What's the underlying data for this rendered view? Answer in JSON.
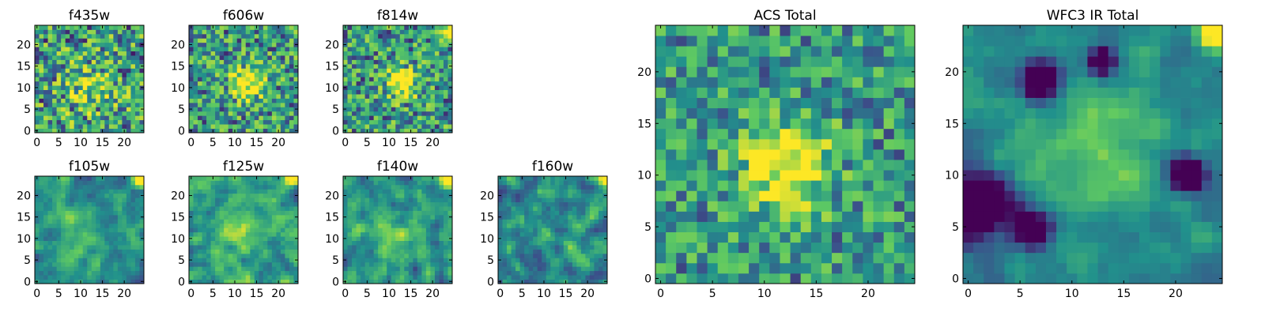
{
  "chart_data": [
    {
      "type": "heatmap",
      "title": "f435w",
      "xlabel": "",
      "ylabel": "",
      "xticks": [
        "0",
        "5",
        "10",
        "15",
        "20"
      ],
      "yticks": [
        "0",
        "5",
        "10",
        "15",
        "20"
      ],
      "xlim": [
        -0.5,
        24.5
      ],
      "ylim": [
        -0.5,
        24.5
      ],
      "grid_size": [
        25,
        25
      ],
      "pattern": {
        "seed": 11,
        "noise": 0.85,
        "blob": 0.25,
        "bx": 12,
        "by": 10,
        "bs": 4,
        "corner": 0.0,
        "dark": [],
        "smooth": 0,
        "gamma": 0.7
      }
    },
    {
      "type": "heatmap",
      "title": "f606w",
      "xlabel": "",
      "ylabel": "",
      "xticks": [
        "0",
        "5",
        "10",
        "15",
        "20"
      ],
      "yticks": [
        "0",
        "5",
        "10",
        "15",
        "20"
      ],
      "xlim": [
        -0.5,
        24.5
      ],
      "ylim": [
        -0.5,
        24.5
      ],
      "grid_size": [
        25,
        25
      ],
      "pattern": {
        "seed": 23,
        "noise": 0.75,
        "blob": 0.6,
        "bx": 13,
        "by": 11,
        "bs": 2.5,
        "corner": 0.0,
        "dark": [],
        "smooth": 0,
        "gamma": 0.75
      }
    },
    {
      "type": "heatmap",
      "title": "f814w",
      "xlabel": "",
      "ylabel": "",
      "xticks": [
        "0",
        "5",
        "10",
        "15",
        "20"
      ],
      "yticks": [
        "0",
        "5",
        "10",
        "15",
        "20"
      ],
      "xlim": [
        -0.5,
        24.5
      ],
      "ylim": [
        -0.5,
        24.5
      ],
      "grid_size": [
        25,
        25
      ],
      "pattern": {
        "seed": 37,
        "noise": 0.75,
        "blob": 0.7,
        "bx": 13,
        "by": 11,
        "bs": 2.2,
        "corner": 0.6,
        "dark": [],
        "smooth": 0,
        "gamma": 0.8
      }
    },
    {
      "type": "heatmap",
      "title": "f105w",
      "xlabel": "",
      "ylabel": "",
      "xticks": [
        "0",
        "5",
        "10",
        "15",
        "20"
      ],
      "yticks": [
        "0",
        "5",
        "10",
        "15",
        "20"
      ],
      "xlim": [
        -0.5,
        24.5
      ],
      "ylim": [
        -0.5,
        24.5
      ],
      "grid_size": [
        25,
        25
      ],
      "pattern": {
        "seed": 41,
        "noise": 0.55,
        "blob": 0.2,
        "bx": 10,
        "by": 10,
        "bs": 4,
        "corner": 1.0,
        "dark": [],
        "smooth": 1,
        "gamma": 1.0
      }
    },
    {
      "type": "heatmap",
      "title": "f125w",
      "xlabel": "",
      "ylabel": "",
      "xticks": [
        "0",
        "5",
        "10",
        "15",
        "20"
      ],
      "yticks": [
        "0",
        "5",
        "10",
        "15",
        "20"
      ],
      "xlim": [
        -0.5,
        24.5
      ],
      "ylim": [
        -0.5,
        24.5
      ],
      "grid_size": [
        25,
        25
      ],
      "pattern": {
        "seed": 53,
        "noise": 0.7,
        "blob": 0.2,
        "bx": 11,
        "by": 11,
        "bs": 4,
        "corner": 1.0,
        "dark": [],
        "smooth": 1,
        "gamma": 0.8
      }
    },
    {
      "type": "heatmap",
      "title": "f140w",
      "xlabel": "",
      "ylabel": "",
      "xticks": [
        "0",
        "5",
        "10",
        "15",
        "20"
      ],
      "yticks": [
        "0",
        "5",
        "10",
        "15",
        "20"
      ],
      "xlim": [
        -0.5,
        24.5
      ],
      "ylim": [
        -0.5,
        24.5
      ],
      "grid_size": [
        25,
        25
      ],
      "pattern": {
        "seed": 67,
        "noise": 0.6,
        "blob": 0.15,
        "bx": 11,
        "by": 10,
        "bs": 4,
        "corner": 1.0,
        "dark": [],
        "smooth": 1,
        "gamma": 1.0
      }
    },
    {
      "type": "heatmap",
      "title": "f160w",
      "xlabel": "",
      "ylabel": "",
      "xticks": [
        "0",
        "5",
        "10",
        "15",
        "20"
      ],
      "yticks": [
        "0",
        "5",
        "10",
        "15",
        "20"
      ],
      "xlim": [
        -0.5,
        24.5
      ],
      "ylim": [
        -0.5,
        24.5
      ],
      "grid_size": [
        25,
        25
      ],
      "pattern": {
        "seed": 79,
        "noise": 0.6,
        "blob": 0.1,
        "bx": 11,
        "by": 10,
        "bs": 4,
        "corner": 1.0,
        "dark": [],
        "smooth": 1,
        "gamma": 1.25
      }
    },
    {
      "type": "heatmap",
      "title": "ACS Total",
      "xlabel": "",
      "ylabel": "",
      "xticks": [
        "0",
        "5",
        "10",
        "15",
        "20"
      ],
      "yticks": [
        "0",
        "5",
        "10",
        "15",
        "20"
      ],
      "xlim": [
        -0.5,
        24.5
      ],
      "ylim": [
        -0.5,
        24.5
      ],
      "grid_size": [
        25,
        25
      ],
      "pattern": {
        "seed": 97,
        "noise": 0.6,
        "blob": 0.55,
        "bx": 12,
        "by": 11,
        "bs": 3,
        "corner": 0.0,
        "dark": [],
        "smooth": 0,
        "gamma": 0.75
      }
    },
    {
      "type": "heatmap",
      "title": "WFC3 IR Total",
      "xlabel": "",
      "ylabel": "",
      "xticks": [
        "0",
        "5",
        "10",
        "15",
        "20"
      ],
      "yticks": [
        "0",
        "5",
        "10",
        "15",
        "20"
      ],
      "xlim": [
        -0.5,
        24.5
      ],
      "ylim": [
        -0.5,
        24.5
      ],
      "grid_size": [
        25,
        25
      ],
      "pattern": {
        "seed": 131,
        "noise": 0.35,
        "blob": 0.3,
        "bx": 12,
        "by": 12,
        "bs": 5,
        "corner": 1.0,
        "dark": [
          [
            1,
            7,
            2.2
          ],
          [
            6,
            5,
            1.3
          ],
          [
            7,
            19,
            1.3
          ],
          [
            13,
            21,
            1.0
          ],
          [
            21,
            10,
            1.2
          ]
        ],
        "smooth": 1,
        "gamma": 1.35
      }
    }
  ],
  "colormap": [
    "#440154",
    "#3b528b",
    "#21918c",
    "#5ec962",
    "#fde725"
  ]
}
